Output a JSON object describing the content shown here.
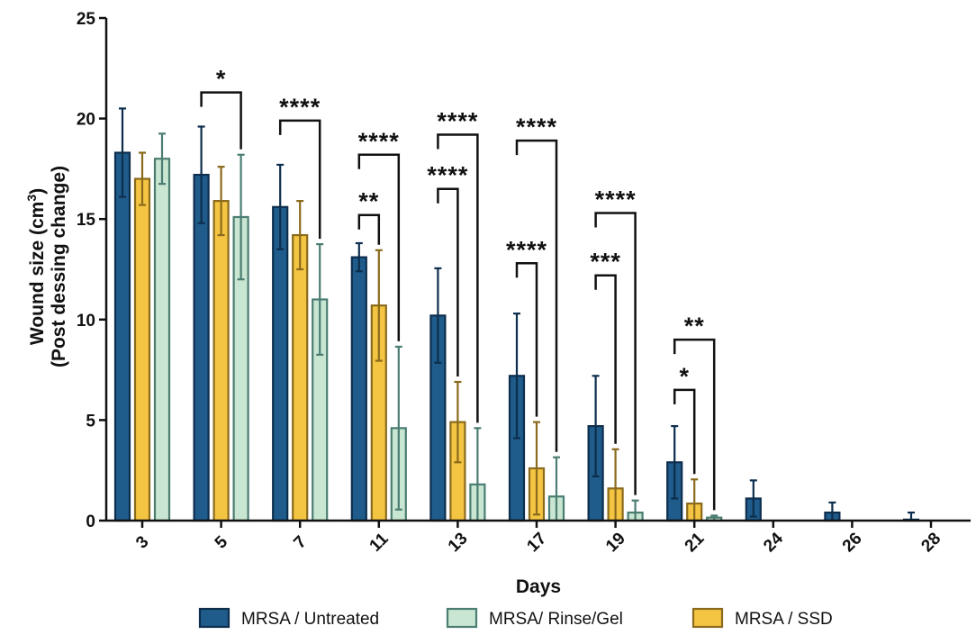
{
  "chart_data": {
    "type": "bar",
    "title": "",
    "xlabel": "Days",
    "ylabel_line1": "Wound size (cm",
    "ylabel_sup": "3",
    "ylabel_close": ")",
    "ylabel_line2": "(Post dessing change)",
    "ylim": [
      0,
      25
    ],
    "yticks": [
      0,
      5,
      10,
      15,
      20,
      25
    ],
    "categories": [
      "3",
      "5",
      "7",
      "11",
      "13",
      "17",
      "19",
      "21",
      "24",
      "26",
      "28"
    ],
    "series": [
      {
        "name": "MRSA / Untreated",
        "fill": "#1f5c8b",
        "stroke": "#0d2e4d",
        "values": [
          18.3,
          17.2,
          15.6,
          13.1,
          10.2,
          7.2,
          4.7,
          2.9,
          1.1,
          0.4,
          0.05
        ],
        "errors": [
          2.2,
          2.4,
          2.1,
          0.7,
          2.35,
          3.1,
          2.5,
          1.8,
          0.9,
          0.5,
          0.35
        ]
      },
      {
        "name": "MRSA / SSD",
        "fill": "#f4c542",
        "stroke": "#8a6a1c",
        "values": [
          17.0,
          15.9,
          14.2,
          10.7,
          4.9,
          2.6,
          1.6,
          0.85,
          0,
          0,
          0
        ],
        "errors": [
          1.3,
          1.7,
          1.7,
          2.75,
          2.0,
          2.3,
          1.95,
          1.2,
          0,
          0,
          0
        ]
      },
      {
        "name": "MRSA/ Rinse/Gel",
        "fill": "#c8e6d2",
        "stroke": "#4b7d72",
        "values": [
          18.0,
          15.1,
          11.0,
          4.6,
          1.8,
          1.2,
          0.4,
          0.15,
          0,
          0,
          0
        ],
        "errors": [
          1.25,
          3.1,
          2.75,
          4.05,
          2.8,
          1.95,
          0.6,
          0.1,
          0,
          0,
          0
        ]
      }
    ],
    "legend_order": [
      0,
      2,
      1
    ],
    "legend_position": "bottom",
    "grid": false,
    "significance": [
      {
        "group": 1,
        "from": 0,
        "to": 2,
        "label": "*",
        "y": 21.3
      },
      {
        "group": 2,
        "from": 0,
        "to": 2,
        "label": "****",
        "y": 19.9
      },
      {
        "group": 3,
        "from": 0,
        "to": 2,
        "label": "****",
        "y": 18.2
      },
      {
        "group": 3,
        "from": 0,
        "to": 1,
        "label": "**",
        "y": 15.2
      },
      {
        "group": 4,
        "from": 0,
        "to": 2,
        "label": "****",
        "y": 19.2
      },
      {
        "group": 4,
        "from": 0,
        "to": 1,
        "label": "****",
        "y": 16.5
      },
      {
        "group": 5,
        "from": 0,
        "to": 2,
        "label": "****",
        "y": 18.9
      },
      {
        "group": 5,
        "from": 0,
        "to": 1,
        "label": "****",
        "y": 12.8
      },
      {
        "group": 6,
        "from": 0,
        "to": 2,
        "label": "****",
        "y": 15.3
      },
      {
        "group": 6,
        "from": 0,
        "to": 1,
        "label": "***",
        "y": 12.2
      },
      {
        "group": 7,
        "from": 0,
        "to": 2,
        "label": "**",
        "y": 9.0
      },
      {
        "group": 7,
        "from": 0,
        "to": 1,
        "label": "*",
        "y": 6.5
      }
    ]
  }
}
